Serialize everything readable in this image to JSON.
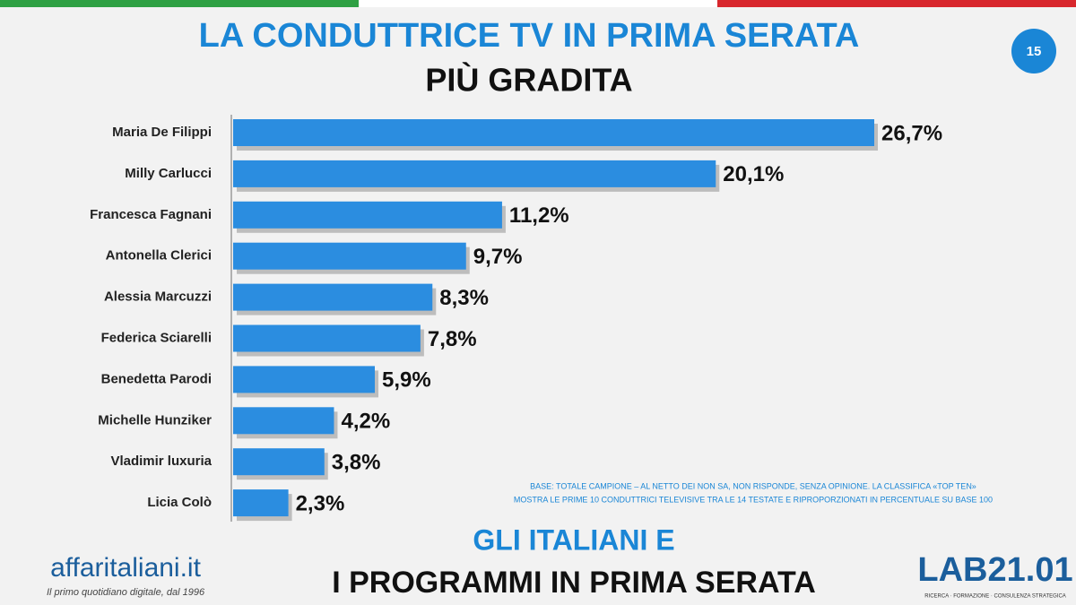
{
  "chart_data": {
    "type": "bar",
    "orientation": "horizontal",
    "title": "LA CONDUTTRICE TV IN PRIMA SERATA",
    "subtitle": "PIÙ GRADITA",
    "categories": [
      "Maria De Filippi",
      "Milly Carlucci",
      "Francesca Fagnani",
      "Antonella Clerici",
      "Alessia Marcuzzi",
      "Federica Sciarelli",
      "Benedetta Parodi",
      "Michelle Hunziker",
      "Vladimir luxuria",
      "Licia Colò"
    ],
    "values": [
      26.7,
      20.1,
      11.2,
      9.7,
      8.3,
      7.8,
      5.9,
      4.2,
      3.8,
      2.3
    ],
    "value_labels": [
      "26,7%",
      "20,1%",
      "11,2%",
      "9,7%",
      "8,3%",
      "7,8%",
      "5,9%",
      "4,2%",
      "3,8%",
      "2,3%"
    ],
    "color": "#2b8de0",
    "note": [
      "BASE: TOTALE CAMPIONE – AL NETTO DEI NON SA, NON RISPONDE, SENZA OPINIONE. LA CLASSIFICA «TOP TEN»",
      "MOSTRA LE PRIME 10 CONDUTTRICI TELEVISIVE TRA LE 14 TESTATE E RIPROPORZIONATI IN PERCENTUALE SU BASE 100"
    ],
    "page_number": "15"
  },
  "footer": {
    "title_line1": "GLI ITALIANI E",
    "title_line2": "I PROGRAMMI IN PRIMA SERATA",
    "logo": "affaritaliani.it",
    "tagline": "Il primo quotidiano digitale, dal 1996",
    "lab_logo": "LAB21.01",
    "lab_tagline": "RICERCA · FORMAZIONE · CONSULENZA STRATEGICA"
  }
}
